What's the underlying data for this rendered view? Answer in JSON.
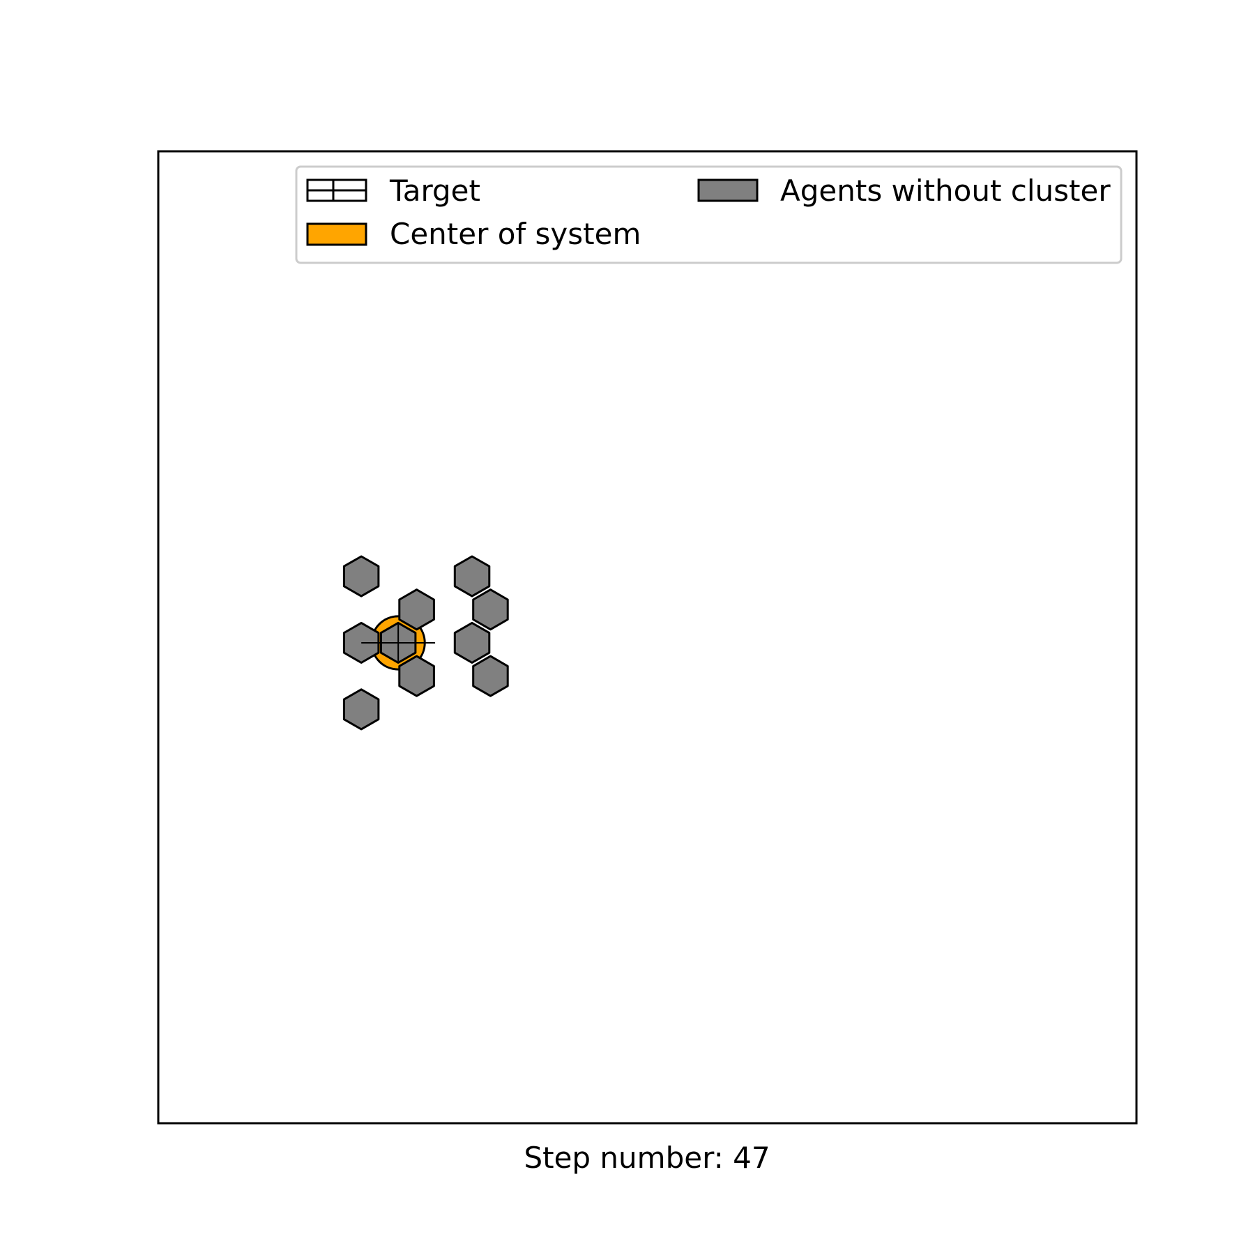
{
  "chart_data": {
    "type": "scatter",
    "title": "",
    "xlabel": "Step number: 47",
    "ylabel": "",
    "grid": false,
    "legend_position": "top-right",
    "legend": [
      {
        "label": "Target",
        "style": "grid-hatch",
        "color": "#ffffff"
      },
      {
        "label": "Agents without cluster",
        "style": "solid",
        "color": "#808080"
      },
      {
        "label": "Center of system",
        "style": "solid",
        "color": "#ffa500"
      }
    ],
    "agents": [
      {
        "x": 5.5,
        "y": 8.0
      },
      {
        "x": 8.5,
        "y": 8.0
      },
      {
        "x": 7.0,
        "y": 7.1
      },
      {
        "x": 9.0,
        "y": 7.1
      },
      {
        "x": 5.5,
        "y": 6.2
      },
      {
        "x": 6.5,
        "y": 6.2
      },
      {
        "x": 8.5,
        "y": 6.2
      },
      {
        "x": 7.0,
        "y": 5.3
      },
      {
        "x": 9.0,
        "y": 5.3
      },
      {
        "x": 5.5,
        "y": 4.4
      }
    ],
    "center_of_system": {
      "x": 6.5,
      "y": 6.2
    },
    "target": {
      "x": 6.5,
      "y": 6.2
    },
    "xlim": [
      0,
      26.5
    ],
    "ylim": [
      -6.8,
      19.5
    ],
    "colors": {
      "agent": "#808080",
      "center": "#ffa500",
      "edge": "#000000",
      "legend_frame": "#cccccc"
    }
  }
}
